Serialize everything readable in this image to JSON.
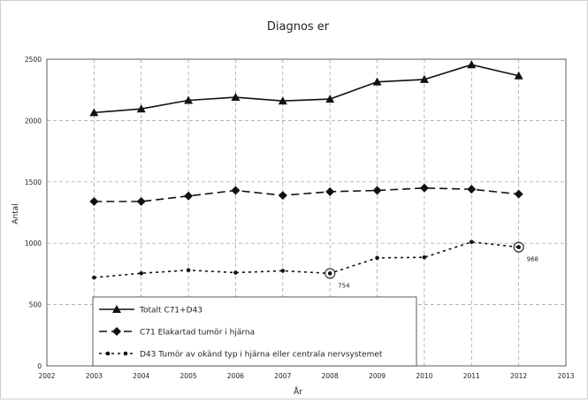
{
  "chart_data": {
    "type": "line",
    "title": "Diagnos er",
    "xlabel": "År",
    "ylabel": "Antal",
    "xlim": [
      2002,
      2013
    ],
    "ylim": [
      0,
      2500
    ],
    "x_ticks": [
      2002,
      2003,
      2004,
      2005,
      2006,
      2007,
      2008,
      2009,
      2010,
      2011,
      2012,
      2013
    ],
    "y_ticks": [
      0,
      500,
      1000,
      1500,
      2000,
      2500
    ],
    "grid": true,
    "legend_position": "bottom-left",
    "x": [
      2003,
      2004,
      2005,
      2006,
      2007,
      2008,
      2009,
      2010,
      2011,
      2012
    ],
    "series": [
      {
        "name": "Totalt C71+D43",
        "marker": "triangle",
        "style": "solid",
        "values": [
          2065,
          2095,
          2165,
          2190,
          2160,
          2175,
          2315,
          2335,
          2455,
          2365
        ]
      },
      {
        "name": "C71 Elakartad tumör i hjärna",
        "marker": "diamond",
        "style": "dashed",
        "values": [
          1340,
          1340,
          1385,
          1430,
          1390,
          1420,
          1430,
          1450,
          1440,
          1400
        ]
      },
      {
        "name": "D43 Tumör av okänd typ i hjärna eller centrala nervsystemet",
        "marker": "dot",
        "style": "dotted",
        "values": [
          720,
          755,
          780,
          760,
          775,
          754,
          880,
          885,
          1010,
          968
        ]
      }
    ],
    "annotations": [
      {
        "series": 2,
        "x": 2008,
        "y": 754,
        "text": "754"
      },
      {
        "series": 2,
        "x": 2012,
        "y": 968,
        "text": "968"
      }
    ]
  }
}
